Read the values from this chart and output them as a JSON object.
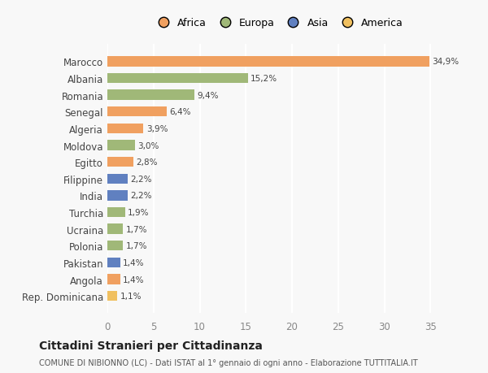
{
  "categories": [
    "Rep. Dominicana",
    "Angola",
    "Pakistan",
    "Polonia",
    "Ucraina",
    "Turchia",
    "India",
    "Filippine",
    "Egitto",
    "Moldova",
    "Algeria",
    "Senegal",
    "Romania",
    "Albania",
    "Marocco"
  ],
  "values": [
    1.1,
    1.4,
    1.4,
    1.7,
    1.7,
    1.9,
    2.2,
    2.2,
    2.8,
    3.0,
    3.9,
    6.4,
    9.4,
    15.2,
    34.9
  ],
  "labels": [
    "1,1%",
    "1,4%",
    "1,4%",
    "1,7%",
    "1,7%",
    "1,9%",
    "2,2%",
    "2,2%",
    "2,8%",
    "3,0%",
    "3,9%",
    "6,4%",
    "9,4%",
    "15,2%",
    "34,9%"
  ],
  "colors": [
    "#f0c060",
    "#f0a060",
    "#6080c0",
    "#a0b878",
    "#a0b878",
    "#a0b878",
    "#6080c0",
    "#6080c0",
    "#f0a060",
    "#a0b878",
    "#f0a060",
    "#f0a060",
    "#a0b878",
    "#a0b878",
    "#f0a060"
  ],
  "legend_labels": [
    "Africa",
    "Europa",
    "Asia",
    "America"
  ],
  "legend_colors": [
    "#f0a060",
    "#a0b878",
    "#6080c0",
    "#f0c060"
  ],
  "title": "Cittadini Stranieri per Cittadinanza",
  "subtitle": "COMUNE DI NIBIONNO (LC) - Dati ISTAT al 1° gennaio di ogni anno - Elaborazione TUTTITALIA.IT",
  "xlim": [
    0,
    37
  ],
  "xticks": [
    0,
    5,
    10,
    15,
    20,
    25,
    30,
    35
  ],
  "background_color": "#f8f8f8",
  "grid_color": "#ffffff",
  "bar_height": 0.6
}
